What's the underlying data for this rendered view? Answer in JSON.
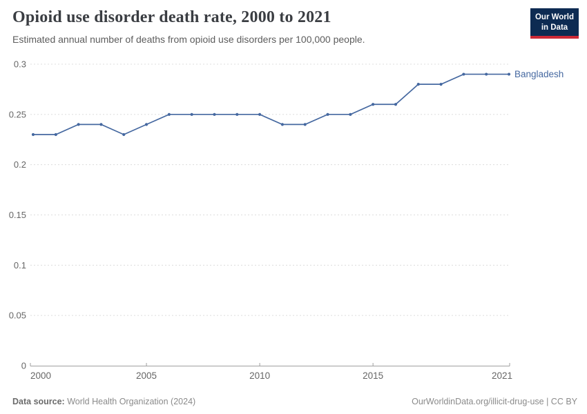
{
  "logo": {
    "line1": "Our World",
    "line2": "in Data"
  },
  "footer": {
    "source_label": "Data source:",
    "source_value": "World Health Organization (2024)",
    "credit": "OurWorldinData.org/illicit-drug-use | CC BY"
  },
  "colors": {
    "accent": "#4568a0",
    "logo_bg": "#0d2b52",
    "logo_stripe": "#cc2936",
    "grid": "#dcdcdc",
    "axis": "#9e9e9e",
    "tick_text": "#666666",
    "title_text": "#3a3d42",
    "subtitle_text": "#5c5c5c"
  },
  "chart_data": {
    "type": "line",
    "title": "Opioid use disorder death rate, 2000 to 2021",
    "subtitle": "Estimated annual number of deaths from opioid use disorders per 100,000 people.",
    "x": [
      2000,
      2001,
      2002,
      2003,
      2004,
      2005,
      2006,
      2007,
      2008,
      2009,
      2010,
      2011,
      2012,
      2013,
      2014,
      2015,
      2016,
      2017,
      2018,
      2019,
      2020,
      2021
    ],
    "series": [
      {
        "name": "Bangladesh",
        "color": "#4568a0",
        "values": [
          0.23,
          0.23,
          0.24,
          0.24,
          0.23,
          0.24,
          0.25,
          0.25,
          0.25,
          0.25,
          0.25,
          0.24,
          0.24,
          0.25,
          0.25,
          0.26,
          0.26,
          0.28,
          0.28,
          0.29,
          0.29,
          0.29
        ]
      }
    ],
    "ylim": [
      0,
      0.3
    ],
    "yticks": [
      0,
      0.05,
      0.1,
      0.15,
      0.2,
      0.25,
      0.3
    ],
    "xticks": [
      2000,
      2005,
      2010,
      2015,
      2021
    ],
    "xlabel": "",
    "ylabel": "",
    "grid": "dashed-horizontal",
    "legend_position": "end-of-line"
  }
}
